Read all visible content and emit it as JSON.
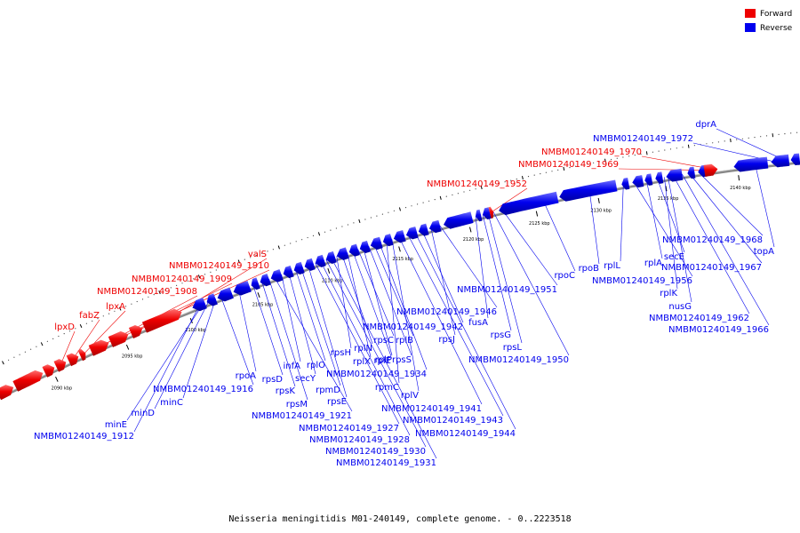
{
  "caption": "Neisseria meningitidis M01-240149, complete genome. - 0..2223518",
  "legend": [
    {
      "label": "Forward",
      "color": "#ee0000"
    },
    {
      "label": "Reverse",
      "color": "#0000ee"
    }
  ],
  "ticks": [
    "2090 kbp",
    "2095 kbp",
    "2100 kbp",
    "2105 kbp",
    "2110 kbp",
    "2115 kbp",
    "2120 kbp",
    "2125 kbp",
    "2130 kbp",
    "2135 kbp",
    "2140 kbp"
  ],
  "forward_labels": [
    "lpxD",
    "fabZ",
    "lpxA",
    "NMBM01240149_1908",
    "NMBM01240149_1909",
    "NMBM01240149_1910",
    "valS",
    "NMBM01240149_1952",
    "NMBM01240149_1969",
    "NMBM01240149_1970"
  ],
  "reverse_labels": [
    "NMBM01240149_1912",
    "minE",
    "minD",
    "minC",
    "NMBM01240149_1916",
    "rpoA",
    "rpsD",
    "rpsK",
    "rpsM",
    "NMBM01240149_1921",
    "infA",
    "secY",
    "rplO",
    "rpmD",
    "rpsE",
    "NMBM01240149_1927",
    "NMBM01240149_1928",
    "NMBM01240149_1930",
    "NMBM01240149_1931",
    "rpsH",
    "rplN",
    "rplX",
    "rplE",
    "rpsC",
    "rplP",
    "rpsS",
    "rplB",
    "NMBM01240149_1934",
    "rpmC",
    "rplV",
    "NMBM01240149_1941",
    "NMBM01240149_1943",
    "NMBM01240149_1944",
    "NMBM01240149_1942",
    "rpsJ",
    "NMBM01240149_1946",
    "fusA",
    "rpsG",
    "rpsL",
    "NMBM01240149_1950",
    "NMBM01240149_1951",
    "rpoC",
    "rpoB",
    "rplL",
    "NMBM01240149_1956",
    "rplA",
    "secE",
    "rplK",
    "nusG",
    "NMBM01240149_1962",
    "NMBM01240149_1966",
    "NMBM01240149_1967",
    "NMBM01240149_1968",
    "topA",
    "NMBM01240149_1972",
    "dprA"
  ],
  "colors": {
    "forward": "#ee0000",
    "reverse": "#0000ee",
    "backbone": "#888888"
  }
}
